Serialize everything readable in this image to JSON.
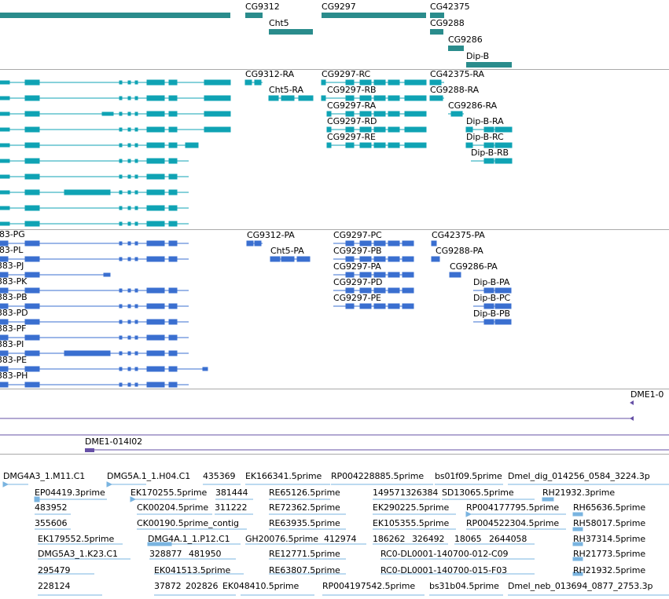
{
  "colors": {
    "gene": "#2a8c8c",
    "transcript": "#0fa3b4",
    "cds": "#3a6fd0",
    "contig": "#6650a6",
    "est": "#7ab4e0",
    "separator": "#a9a9a9"
  },
  "tracks": {
    "genes": {
      "labels": [
        "CG9312",
        "Cht5",
        "CG9297",
        "CG42375",
        "CG9288",
        "CG9286",
        "Dip-B"
      ]
    },
    "transcripts": {
      "labels": [
        "CG9312-RA",
        "Cht5-RA",
        "CG9297-RC",
        "CG9297-RB",
        "CG9297-RA",
        "CG9297-RD",
        "CG9297-RE",
        "CG42375-RA",
        "CG9288-RA",
        "CG9286-RA",
        "Dip-B-RA",
        "Dip-B-RC",
        "Dip-B-RB"
      ]
    },
    "cds": {
      "labels": [
        "83-PG",
        "83-PL",
        "383-PJ",
        "383-PK",
        "383-PB",
        "383-PD",
        "383-PF",
        "383-PI",
        "383-PE",
        "383-PH",
        "CG9312-PA",
        "Cht5-PA",
        "CG9297-PC",
        "CG9297-PB",
        "CG9297-PA",
        "CG9297-PD",
        "CG9297-PE",
        "CG42375-PA",
        "CG9288-PA",
        "CG9286-PA",
        "Dip-B-PA",
        "Dip-B-PC",
        "Dip-B-PB"
      ]
    },
    "contigs": {
      "labels": [
        "DME1-0",
        "DME1-014I02"
      ]
    },
    "ests": {
      "labels": [
        "DMG4A3_1.M11.C1",
        "DMG5A.1_1.H04.C1",
        "435369",
        "EK166341.5prime",
        "RP004228885.5prime",
        "bs01f09.5prime",
        "Dmel_dig_014256_0584_3224.3p",
        "EP04419.3prime",
        "EK170255.5prime",
        "381444",
        "RE65126.5prime",
        "14957",
        "1326384",
        "SD13065.5prime",
        "RH21932.3prime",
        "483952",
        "CK00204.5prime",
        "311222",
        "RE72362.5prime",
        "EK290225.5prime",
        "RP004177795.5prime",
        "RH65636.5prime",
        "355606",
        "CK00190.5prime_contig",
        "RE63935.5prime",
        "EK105355.5prime",
        "RP004522304.5prime",
        "RH58017.5prime",
        "EK179552.5prime",
        "DMG4A.1_1.P12.C1",
        "GH20076.5prime",
        "412974",
        "186262",
        "326492",
        "18065",
        "2644058",
        "RH37314.5prime",
        "DMG5A3_1.K23.C1",
        "328877",
        "481950",
        "RE12771.5prime",
        "RC0-DL0001-140700-012-C09",
        "RH21773.5prime",
        "295479",
        "EK041513.5prime",
        "RE63807.5prime",
        "RC0-DL0001-140700-015-F03",
        "RH21932.5prime",
        "228124",
        "37872",
        "202826",
        "EK048410.5prime",
        "RP004197542.5prime",
        "bs31b04.5prime",
        "Dmel_neb_013694_0877_2753.3p"
      ]
    }
  }
}
